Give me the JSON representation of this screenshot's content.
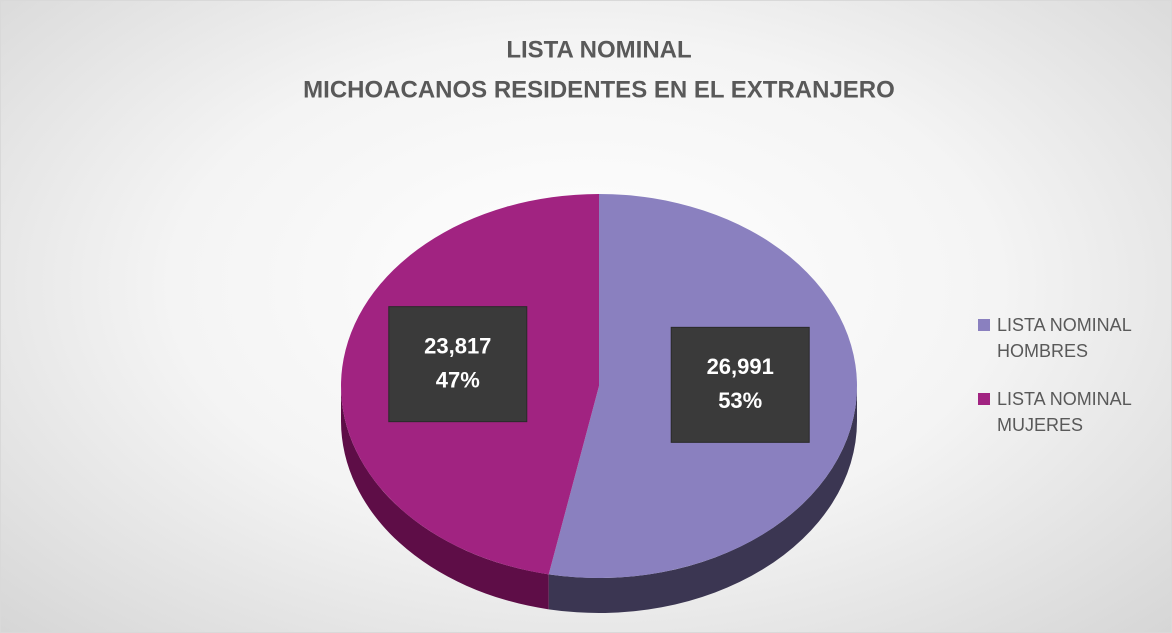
{
  "chart_data": {
    "type": "pie3d",
    "title": "LISTA NOMINAL",
    "subtitle": "MICHOACANOS RESIDENTES EN EL EXTRANJERO",
    "categories": [
      "LISTA NOMINAL HOMBRES",
      "LISTA NOMINAL MUJERES"
    ],
    "values": [
      26991,
      23817
    ],
    "value_labels": [
      "26,991",
      "23,817"
    ],
    "percent_labels": [
      "53%",
      "47%"
    ],
    "colors": [
      "#8a80bf",
      "#a12381"
    ],
    "side_colors": [
      "#3b3652",
      "#5e0d47"
    ],
    "legend": "right"
  }
}
